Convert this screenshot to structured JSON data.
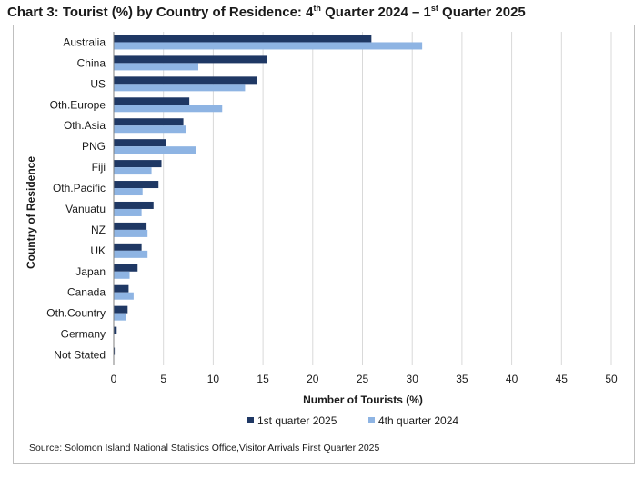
{
  "title_parts": [
    "Chart 3: Tourist (%) by Country of Residence: 4",
    "th",
    " Quarter 2024 – 1",
    "st",
    " Quarter 2025"
  ],
  "source_note": "Source: Solomon Island National Statistics Office,Visitor Arrivals First Quarter 2025",
  "chart_data": {
    "type": "bar",
    "orientation": "horizontal",
    "xlabel": "Number of Tourists (%)",
    "ylabel": "Country of Residence",
    "xlim": [
      0,
      50
    ],
    "xticks": [
      0,
      5,
      10,
      15,
      20,
      25,
      30,
      35,
      40,
      45,
      50
    ],
    "grid": true,
    "legend_position": "bottom",
    "categories": [
      "Australia",
      "China",
      "US",
      "Oth.Europe",
      "Oth.Asia",
      "PNG",
      "Fiji",
      "Oth.Pacific",
      "Vanuatu",
      "NZ",
      "UK",
      "Japan",
      "Canada",
      "Oth.Country",
      "Germany",
      "Not Stated"
    ],
    "series": [
      {
        "name": "1st quarter 2025",
        "color": "#1f3864",
        "values": [
          25.9,
          15.4,
          14.4,
          7.6,
          7.0,
          5.3,
          4.8,
          4.5,
          4.0,
          3.3,
          2.8,
          2.4,
          1.5,
          1.4,
          0.3,
          0.1
        ]
      },
      {
        "name": "4th quarter 2024",
        "color": "#8eb4e3",
        "values": [
          31.0,
          8.5,
          13.2,
          10.9,
          7.3,
          8.3,
          3.8,
          2.9,
          2.8,
          3.4,
          3.4,
          1.6,
          2.0,
          1.2,
          0.0,
          0.0
        ]
      }
    ]
  }
}
